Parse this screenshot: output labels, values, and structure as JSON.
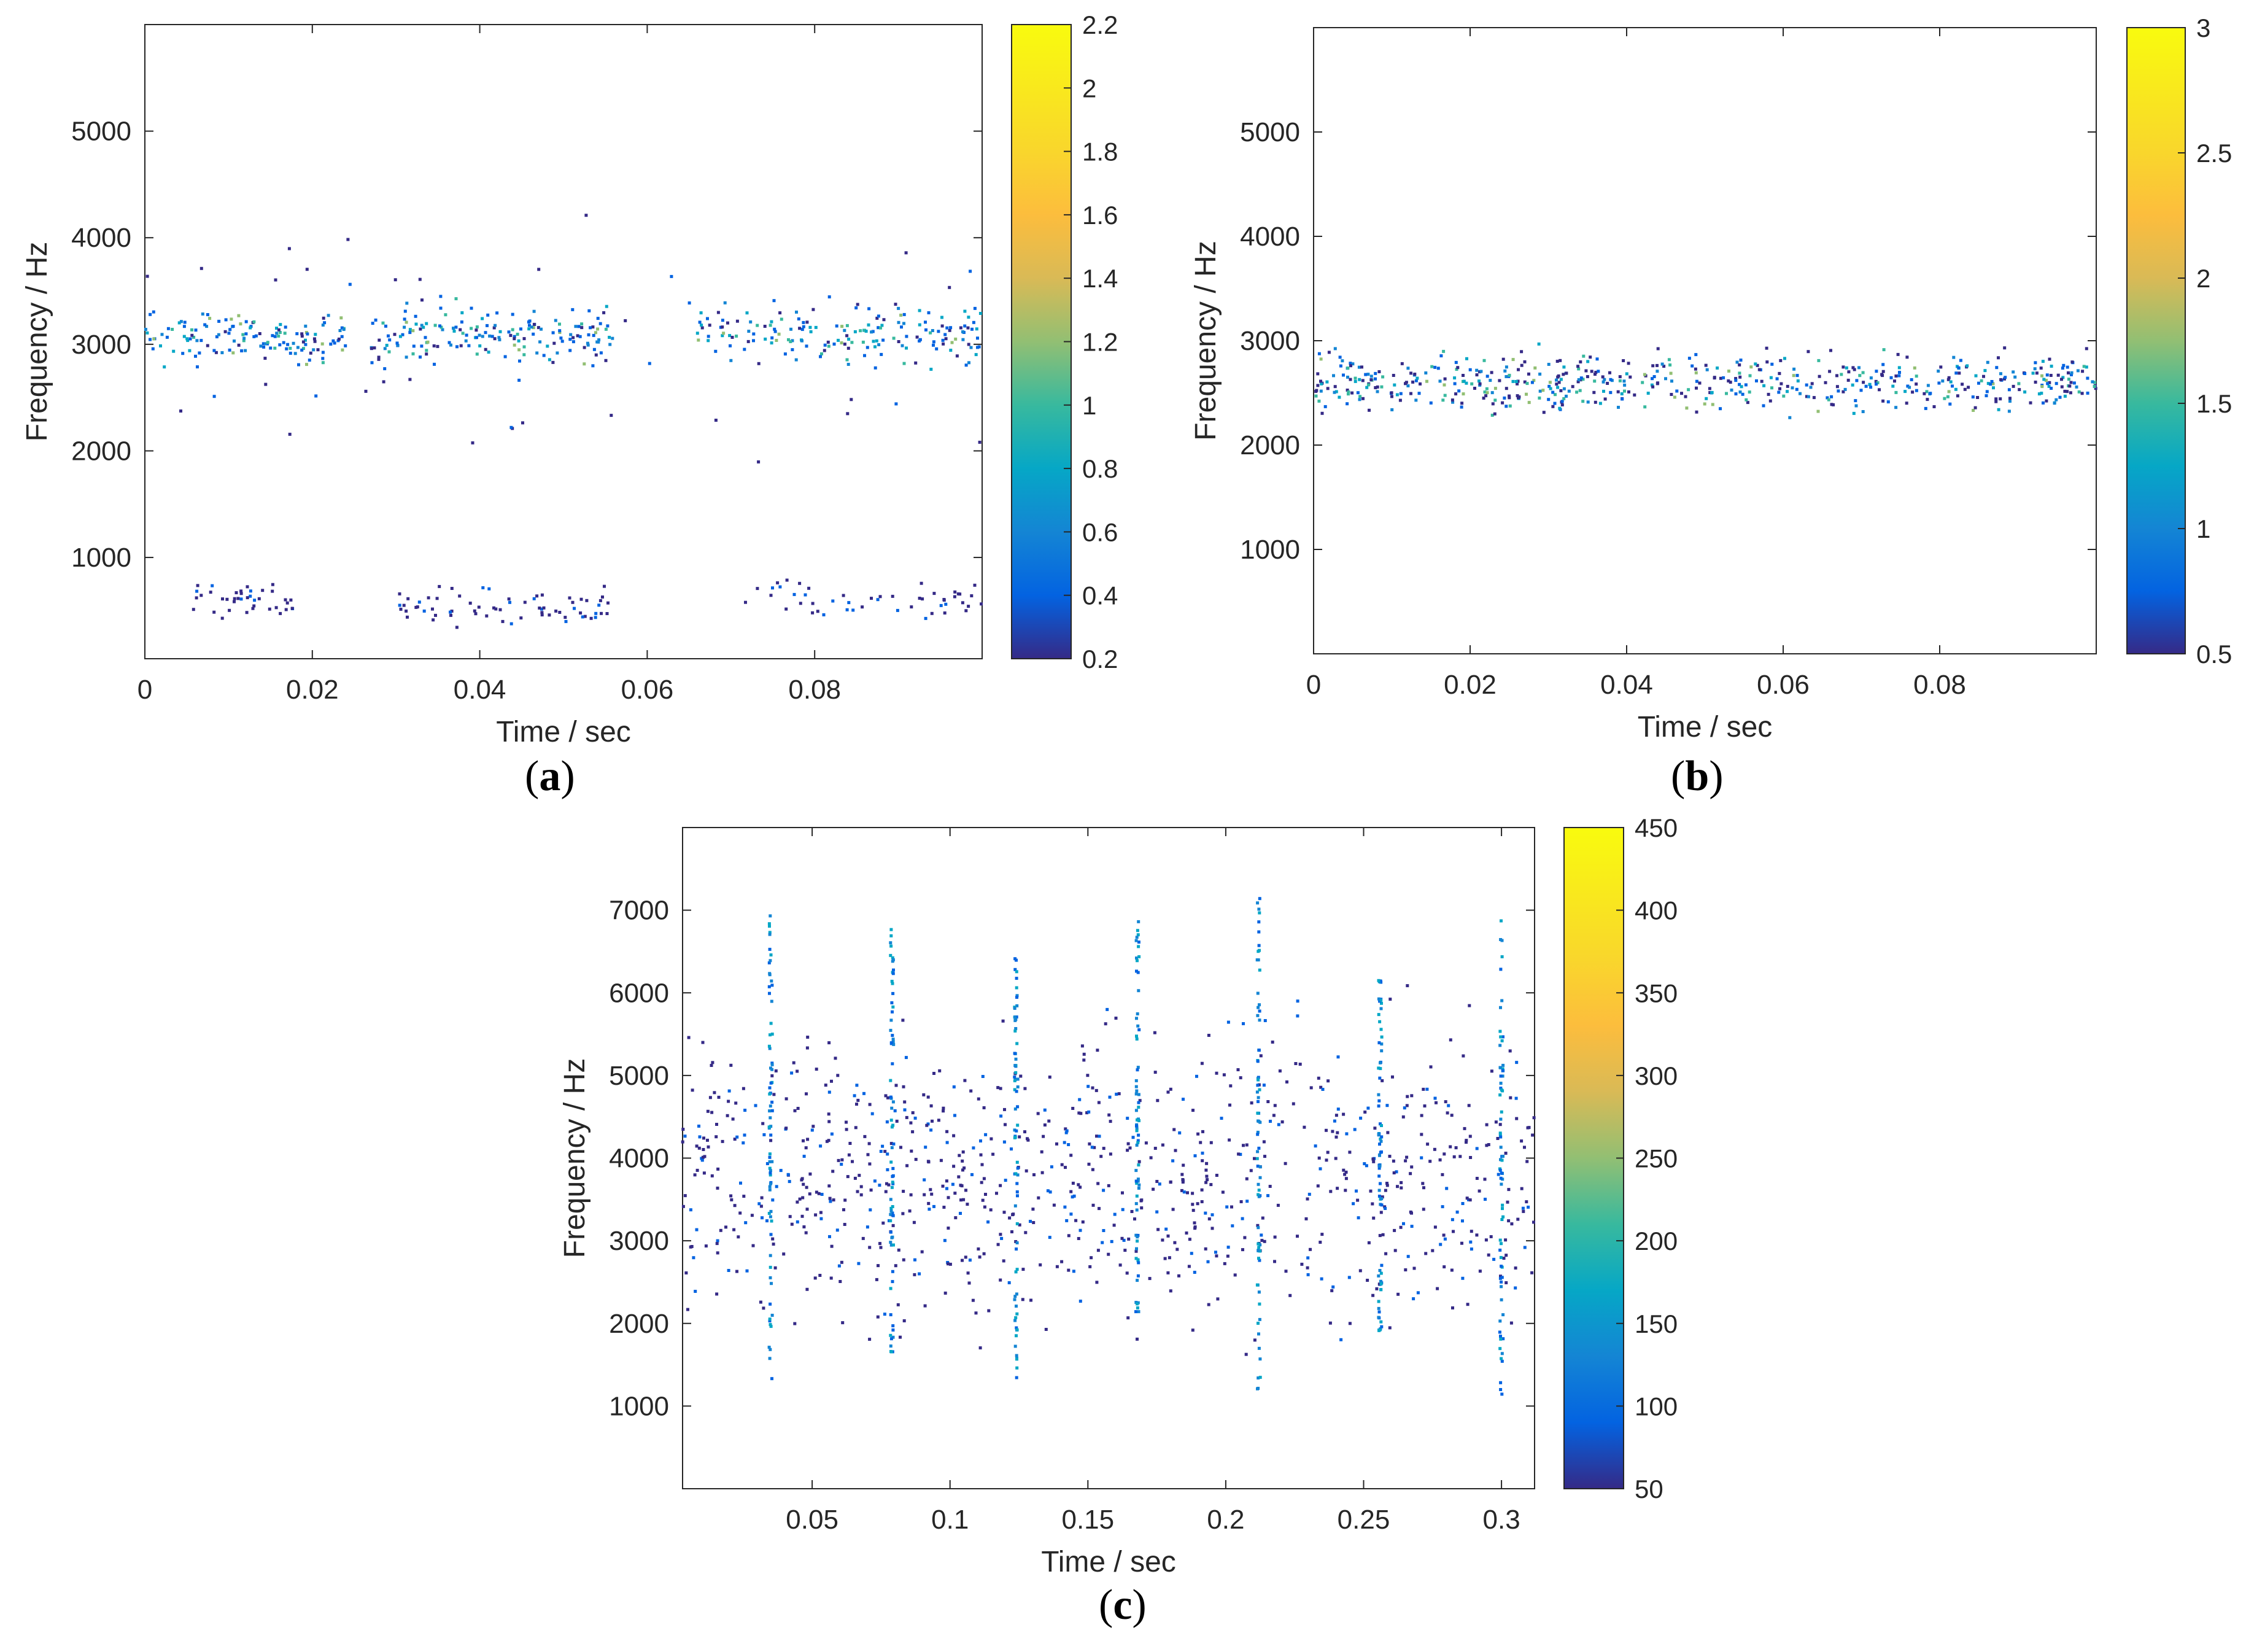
{
  "figure": {
    "panels": [
      {
        "label": "a",
        "xlabel": "Time / sec",
        "ylabel": "Frequency / Hz",
        "xlim": [
          0,
          0.1
        ],
        "ylim": [
          50,
          6000
        ],
        "xticks": [
          0,
          0.02,
          0.04,
          0.06,
          0.08
        ],
        "xtick_labels": [
          "0",
          "0.02",
          "0.04",
          "0.06",
          "0.08"
        ],
        "yticks": [
          1000,
          2000,
          3000,
          4000,
          5000
        ],
        "ytick_labels": [
          "1000",
          "2000",
          "3000",
          "4000",
          "5000"
        ],
        "colorbar": {
          "range": [
            0.2,
            2.2
          ],
          "ticks": [
            0.2,
            0.4,
            0.6,
            0.8,
            1,
            1.2,
            1.4,
            1.6,
            1.8,
            2,
            2.2
          ],
          "tick_labels": [
            "0.2",
            "0.4",
            "0.6",
            "0.8",
            "1",
            "1.2",
            "1.4",
            "1.6",
            "1.8",
            "2",
            "2.2"
          ]
        }
      },
      {
        "label": "b",
        "xlabel": "Time / sec",
        "ylabel": "Frequency / Hz",
        "xlim": [
          0,
          0.1
        ],
        "ylim": [
          0,
          6000
        ],
        "xticks": [
          0,
          0.02,
          0.04,
          0.06,
          0.08
        ],
        "xtick_labels": [
          "0",
          "0.02",
          "0.04",
          "0.06",
          "0.08"
        ],
        "yticks": [
          1000,
          2000,
          3000,
          4000,
          5000
        ],
        "ytick_labels": [
          "1000",
          "2000",
          "3000",
          "4000",
          "5000"
        ],
        "colorbar": {
          "range": [
            0.5,
            3
          ],
          "ticks": [
            0.5,
            1,
            1.5,
            2,
            2.5,
            3
          ],
          "tick_labels": [
            "0.5",
            "1",
            "1.5",
            "2",
            "2.5",
            "3"
          ]
        }
      },
      {
        "label": "c",
        "xlabel": "Time / sec",
        "ylabel": "Frequency / Hz",
        "xlim": [
          0.003,
          0.312
        ],
        "ylim": [
          0,
          8000
        ],
        "xticks": [
          0.05,
          0.1,
          0.15,
          0.2,
          0.25,
          0.3
        ],
        "xtick_labels": [
          "0.05",
          "0.1",
          "0.15",
          "0.2",
          "0.25",
          "0.3"
        ],
        "yticks": [
          1000,
          2000,
          3000,
          4000,
          5000,
          6000,
          7000
        ],
        "ytick_labels": [
          "1000",
          "2000",
          "3000",
          "4000",
          "5000",
          "6000",
          "7000"
        ],
        "colorbar": {
          "range": [
            50,
            450
          ],
          "ticks": [
            50,
            100,
            150,
            200,
            250,
            300,
            350,
            400,
            450
          ],
          "tick_labels": [
            "50",
            "100",
            "150",
            "200",
            "250",
            "300",
            "350",
            "400",
            "450"
          ]
        }
      }
    ]
  },
  "chart_data": [
    {
      "type": "scatter",
      "panel": "a",
      "xlabel": "Time / sec",
      "ylabel": "Frequency / Hz",
      "xlim": [
        0,
        0.1
      ],
      "ylim": [
        50,
        6000
      ],
      "colorbar_range": [
        0.2,
        2.2
      ],
      "description_of_marks": "sparse time-frequency points",
      "clusters": [
        {
          "t": [
            0.0,
            0.024
          ],
          "f": [
            2700,
            3400
          ],
          "c": [
            0.3,
            1.4
          ],
          "n": 140
        },
        {
          "t": [
            0.027,
            0.056
          ],
          "f": [
            2700,
            3500
          ],
          "c": [
            0.3,
            1.4
          ],
          "n": 170
        },
        {
          "t": [
            0.066,
            0.1
          ],
          "f": [
            2700,
            3500
          ],
          "c": [
            0.3,
            1.3
          ],
          "n": 170
        },
        {
          "t": [
            0.005,
            0.018
          ],
          "f": [
            350,
            800
          ],
          "c": [
            0.2,
            0.4
          ],
          "n": 40
        },
        {
          "t": [
            0.03,
            0.056
          ],
          "f": [
            250,
            800
          ],
          "c": [
            0.2,
            0.4
          ],
          "n": 70
        },
        {
          "t": [
            0.07,
            0.1
          ],
          "f": [
            350,
            900
          ],
          "c": [
            0.2,
            0.4
          ],
          "n": 50
        },
        {
          "t": [
            0.0,
            0.1
          ],
          "f": [
            1500,
            4400
          ],
          "c": [
            0.2,
            0.4
          ],
          "n": 60
        }
      ]
    },
    {
      "type": "scatter",
      "panel": "b",
      "xlabel": "Time / sec",
      "ylabel": "Frequency / Hz",
      "xlim": [
        0,
        0.1
      ],
      "ylim": [
        0,
        6000
      ],
      "colorbar_range": [
        0.5,
        3
      ],
      "clusters": [
        {
          "t": [
            0.0,
            0.1
          ],
          "f": [
            2200,
            3000
          ],
          "c": [
            0.5,
            1.9
          ],
          "n": 600
        }
      ]
    },
    {
      "type": "scatter",
      "panel": "c",
      "xlabel": "Time / sec",
      "ylabel": "Frequency / Hz",
      "xlim": [
        0.003,
        0.312
      ],
      "ylim": [
        0,
        8000
      ],
      "colorbar_range": [
        50,
        450
      ],
      "background_band": {
        "f": [
          1500,
          6000
        ],
        "c": [
          50,
          80
        ],
        "n": 900
      },
      "pulse_columns": [
        {
          "t": 0.035,
          "f": [
            1300,
            7000
          ],
          "c": [
            80,
            200
          ]
        },
        {
          "t": 0.079,
          "f": [
            1600,
            6900
          ],
          "c": [
            80,
            200
          ]
        },
        {
          "t": 0.124,
          "f": [
            1300,
            6500
          ],
          "c": [
            80,
            200
          ]
        },
        {
          "t": 0.168,
          "f": [
            2000,
            6900
          ],
          "c": [
            80,
            200
          ]
        },
        {
          "t": 0.212,
          "f": [
            1200,
            7200
          ],
          "c": [
            80,
            200
          ]
        },
        {
          "t": 0.256,
          "f": [
            1900,
            6200
          ],
          "c": [
            80,
            200
          ]
        },
        {
          "t": 0.3,
          "f": [
            1100,
            6900
          ],
          "c": [
            80,
            200
          ]
        }
      ]
    }
  ]
}
